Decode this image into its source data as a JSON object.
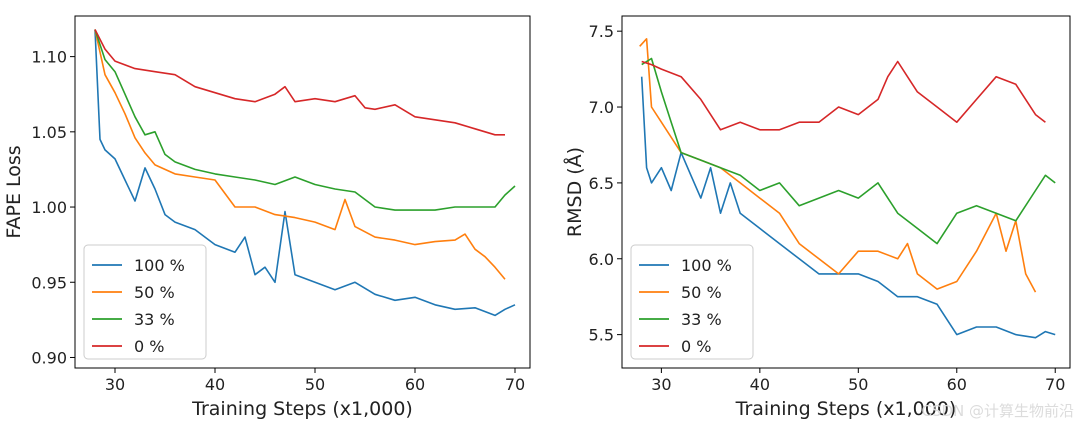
{
  "watermark": "CSDN @计算生物前沿",
  "series_colors": {
    "100 %": "#1f77b4",
    "50 %": "#ff7f0e",
    "33 %": "#2ca02c",
    "0 %": "#d62728"
  },
  "chart_data": [
    {
      "type": "line",
      "title": "",
      "xlabel": "Training Steps (x1,000)",
      "ylabel": "FAPE Loss",
      "xlim": [
        26,
        71.5
      ],
      "ylim": [
        0.893,
        1.127
      ],
      "xticks": [
        "30",
        "40",
        "50",
        "60",
        "70"
      ],
      "yticks": [
        "0.90",
        "0.95",
        "1.00",
        "1.05",
        "1.10"
      ],
      "legend_position": "lower-left",
      "series": [
        {
          "name": "100 %",
          "x": [
            28,
            28.5,
            29,
            30,
            31,
            32,
            33,
            34,
            35,
            36,
            38,
            40,
            42,
            43,
            44,
            45,
            46,
            47,
            48,
            50,
            52,
            54,
            56,
            58,
            60,
            62,
            64,
            66,
            68,
            69,
            70
          ],
          "values": [
            1.118,
            1.045,
            1.038,
            1.032,
            1.018,
            1.004,
            1.026,
            1.012,
            0.995,
            0.99,
            0.985,
            0.975,
            0.97,
            0.98,
            0.955,
            0.96,
            0.95,
            0.997,
            0.955,
            0.95,
            0.945,
            0.95,
            0.942,
            0.938,
            0.94,
            0.935,
            0.932,
            0.933,
            0.928,
            0.932,
            0.935
          ]
        },
        {
          "name": "50 %",
          "x": [
            28,
            29,
            30,
            31,
            32,
            33,
            34,
            36,
            38,
            40,
            42,
            44,
            46,
            48,
            50,
            52,
            53,
            54,
            56,
            58,
            60,
            62,
            64,
            65,
            66,
            67,
            68,
            69
          ],
          "values": [
            1.118,
            1.088,
            1.076,
            1.062,
            1.046,
            1.036,
            1.028,
            1.022,
            1.02,
            1.018,
            1.0,
            1.0,
            0.995,
            0.993,
            0.99,
            0.985,
            1.005,
            0.987,
            0.98,
            0.978,
            0.975,
            0.977,
            0.978,
            0.982,
            0.972,
            0.967,
            0.96,
            0.952
          ]
        },
        {
          "name": "33 %",
          "x": [
            28,
            29,
            30,
            31,
            32,
            33,
            34,
            35,
            36,
            38,
            40,
            42,
            44,
            46,
            48,
            50,
            52,
            54,
            56,
            58,
            60,
            62,
            64,
            66,
            68,
            69,
            70
          ],
          "values": [
            1.118,
            1.098,
            1.09,
            1.075,
            1.06,
            1.048,
            1.05,
            1.035,
            1.03,
            1.025,
            1.022,
            1.02,
            1.018,
            1.015,
            1.02,
            1.015,
            1.012,
            1.01,
            1.0,
            0.998,
            0.998,
            0.998,
            1.0,
            1.0,
            1.0,
            1.008,
            1.014
          ]
        },
        {
          "name": "0 %",
          "x": [
            28,
            29,
            30,
            32,
            34,
            36,
            38,
            40,
            42,
            44,
            46,
            47,
            48,
            50,
            52,
            54,
            55,
            56,
            58,
            60,
            62,
            64,
            66,
            68,
            69
          ],
          "values": [
            1.118,
            1.105,
            1.097,
            1.092,
            1.09,
            1.088,
            1.08,
            1.076,
            1.072,
            1.07,
            1.075,
            1.08,
            1.07,
            1.072,
            1.07,
            1.074,
            1.066,
            1.065,
            1.068,
            1.06,
            1.058,
            1.056,
            1.052,
            1.048,
            1.048
          ]
        }
      ]
    },
    {
      "type": "line",
      "title": "",
      "xlabel": "Training Steps (x1,000)",
      "ylabel": "RMSD (Å)",
      "xlim": [
        26,
        71.5
      ],
      "ylim": [
        5.28,
        7.6
      ],
      "xticks": [
        "30",
        "40",
        "50",
        "60",
        "70"
      ],
      "yticks": [
        "5.5",
        "6.0",
        "6.5",
        "7.0",
        "7.5"
      ],
      "legend_position": "lower-left",
      "series": [
        {
          "name": "100 %",
          "x": [
            28,
            28.5,
            29,
            30,
            31,
            32,
            33,
            34,
            35,
            36,
            37,
            38,
            40,
            42,
            44,
            46,
            48,
            50,
            52,
            54,
            56,
            58,
            60,
            62,
            64,
            66,
            68,
            69,
            70
          ],
          "values": [
            7.2,
            6.6,
            6.5,
            6.6,
            6.45,
            6.7,
            6.55,
            6.4,
            6.6,
            6.3,
            6.5,
            6.3,
            6.2,
            6.1,
            6.0,
            5.9,
            5.9,
            5.9,
            5.85,
            5.75,
            5.75,
            5.7,
            5.5,
            5.55,
            5.55,
            5.5,
            5.48,
            5.52,
            5.5
          ]
        },
        {
          "name": "50 %",
          "x": [
            27.8,
            28.5,
            29,
            30,
            32,
            34,
            36,
            38,
            40,
            42,
            44,
            46,
            48,
            50,
            52,
            54,
            55,
            56,
            58,
            60,
            62,
            64,
            65,
            66,
            67,
            68
          ],
          "values": [
            7.4,
            7.45,
            7.0,
            6.9,
            6.7,
            6.65,
            6.6,
            6.5,
            6.4,
            6.3,
            6.1,
            6.0,
            5.9,
            6.05,
            6.05,
            6.0,
            6.1,
            5.9,
            5.8,
            5.85,
            6.05,
            6.3,
            6.05,
            6.25,
            5.9,
            5.78
          ]
        },
        {
          "name": "33 %",
          "x": [
            28,
            29,
            30,
            31,
            32,
            34,
            36,
            38,
            40,
            42,
            44,
            46,
            48,
            50,
            52,
            54,
            56,
            58,
            60,
            62,
            64,
            66,
            68,
            69,
            70
          ],
          "values": [
            7.28,
            7.32,
            7.1,
            6.9,
            6.7,
            6.65,
            6.6,
            6.55,
            6.45,
            6.5,
            6.35,
            6.4,
            6.45,
            6.4,
            6.5,
            6.3,
            6.2,
            6.1,
            6.3,
            6.35,
            6.3,
            6.25,
            6.45,
            6.55,
            6.5
          ]
        },
        {
          "name": "0 %",
          "x": [
            28,
            29,
            30,
            32,
            34,
            36,
            38,
            40,
            42,
            44,
            46,
            48,
            50,
            52,
            53,
            54,
            55,
            56,
            58,
            60,
            62,
            64,
            66,
            68,
            69
          ],
          "values": [
            7.3,
            7.28,
            7.25,
            7.2,
            7.05,
            6.85,
            6.9,
            6.85,
            6.85,
            6.9,
            6.9,
            7.0,
            6.95,
            7.05,
            7.2,
            7.3,
            7.2,
            7.1,
            7.0,
            6.9,
            7.05,
            7.2,
            7.15,
            6.95,
            6.9
          ]
        }
      ]
    }
  ]
}
